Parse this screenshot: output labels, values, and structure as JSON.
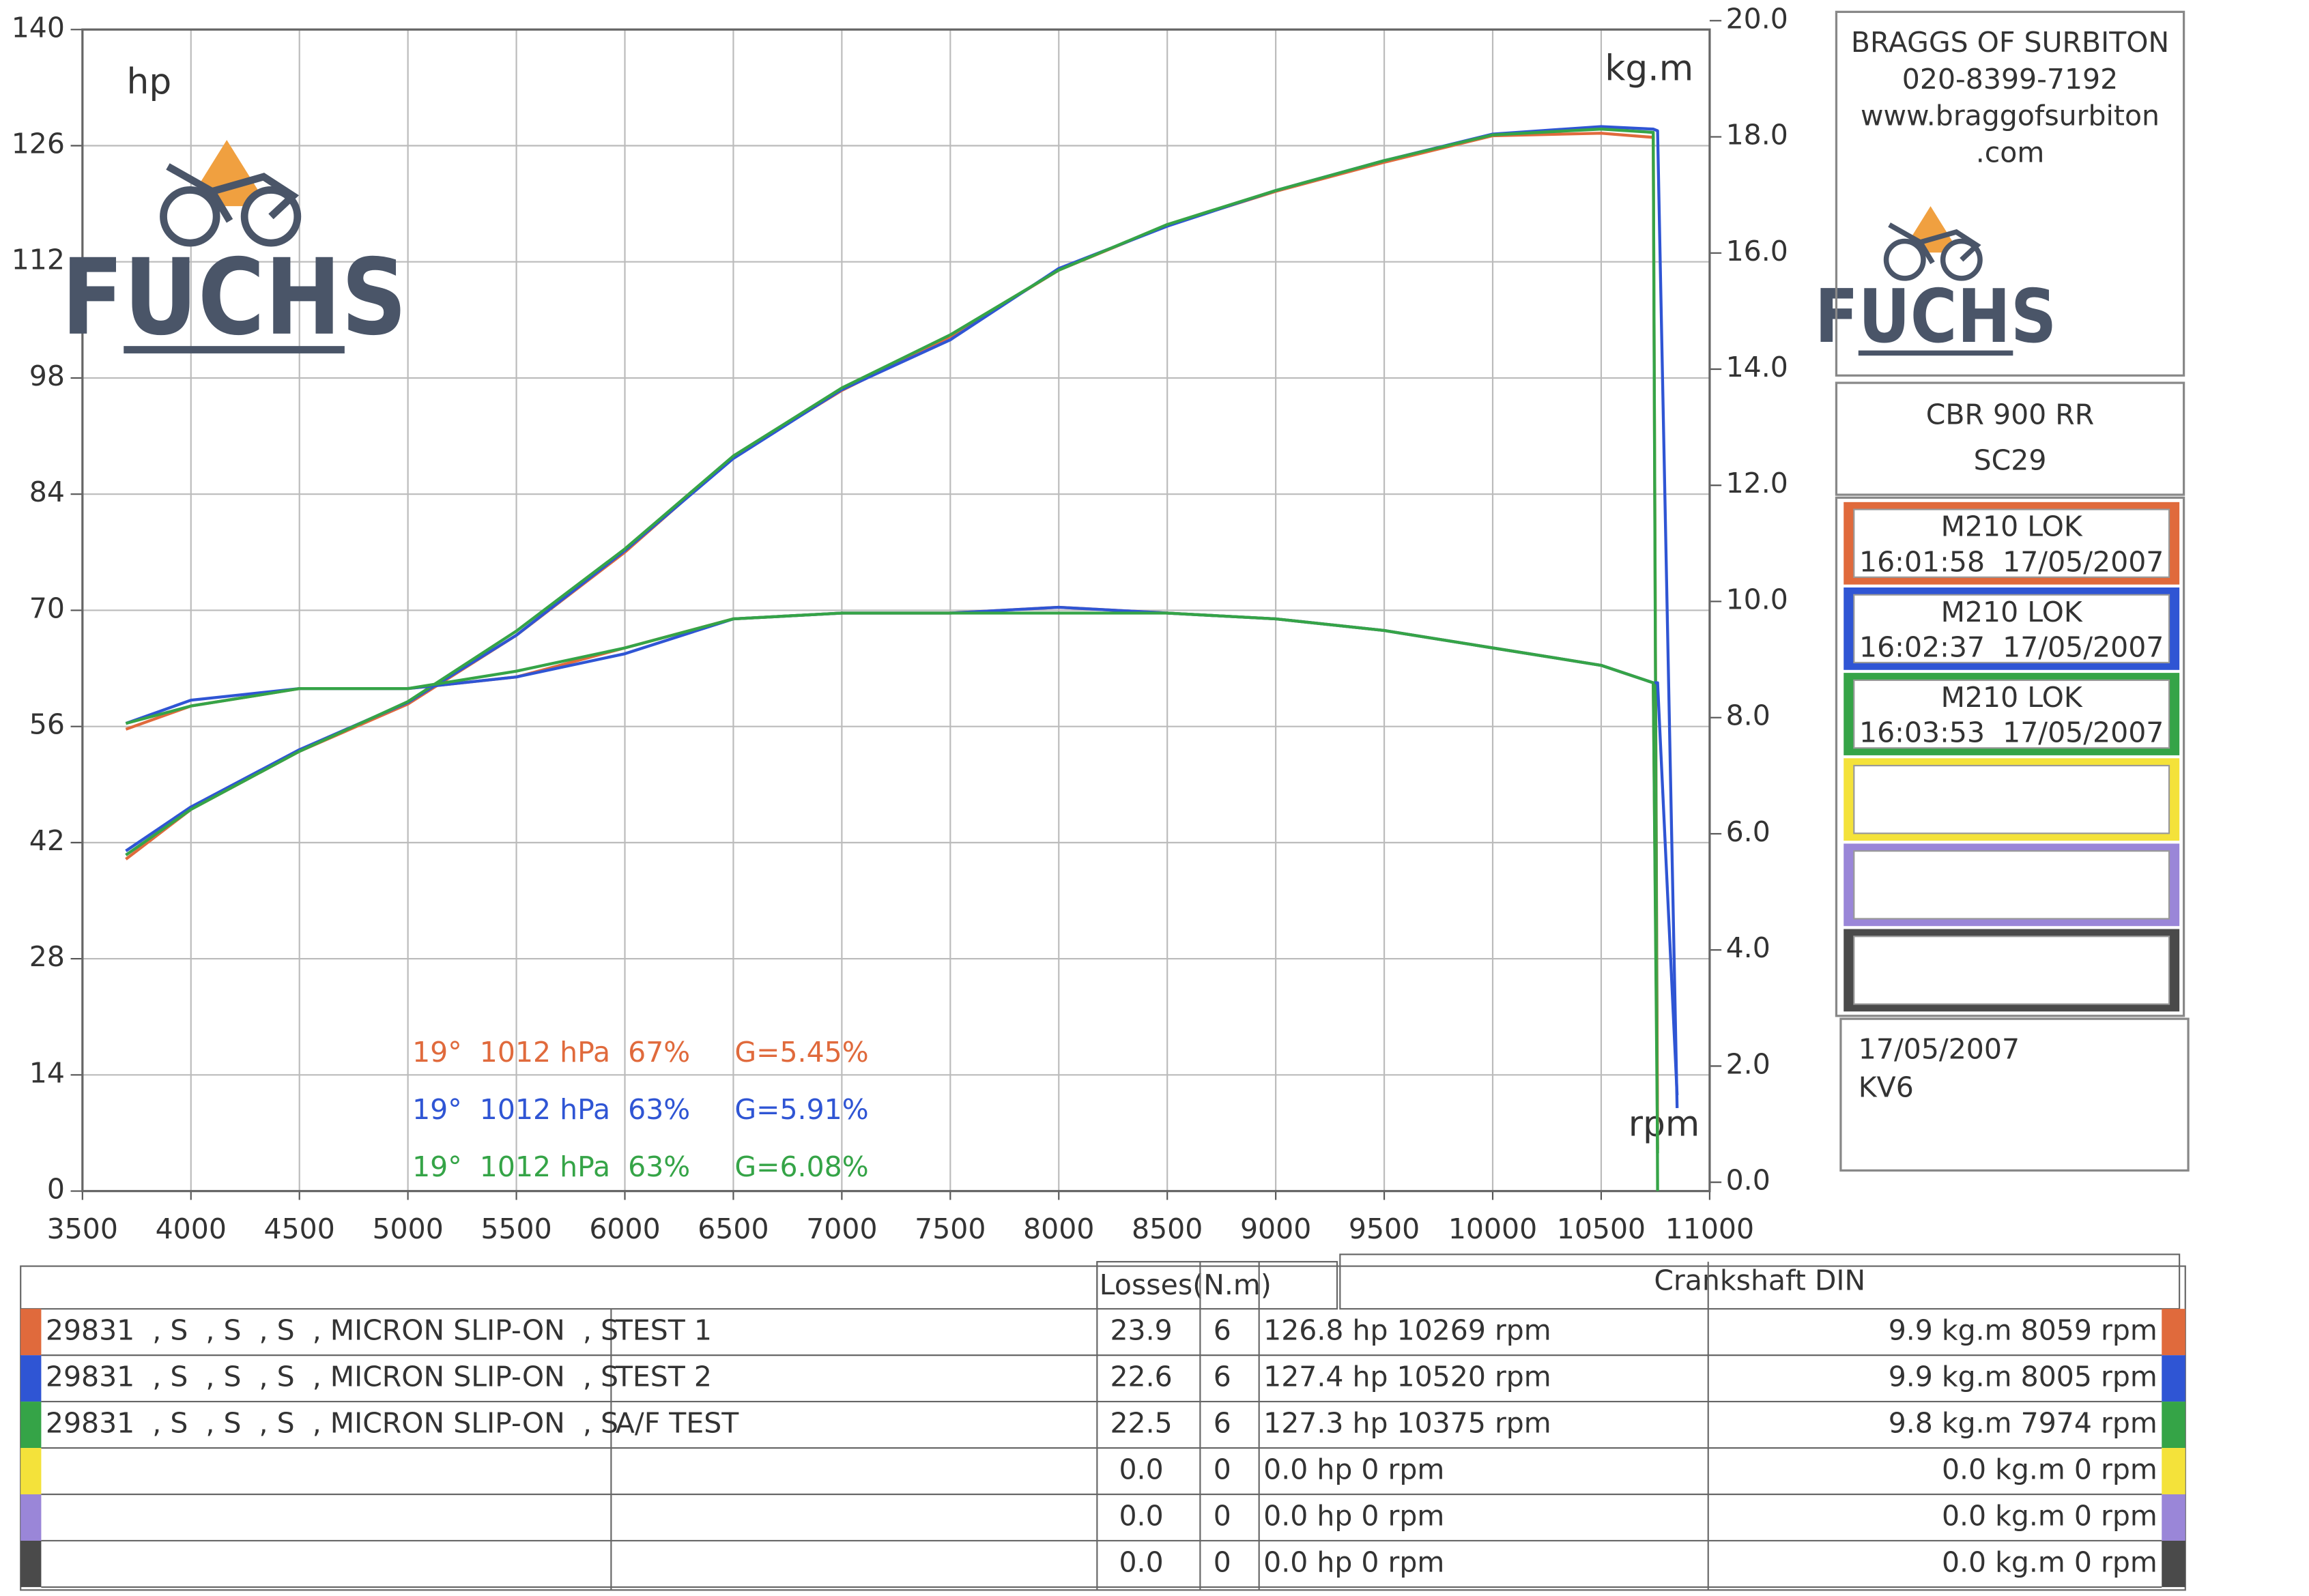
{
  "chart_data": {
    "type": "line",
    "y_label": "hp",
    "y2_label": "kg.m",
    "x_label": "rpm",
    "x": [
      3700,
      4000,
      4500,
      5000,
      5500,
      6000,
      6500,
      7000,
      7500,
      8000,
      8500,
      9000,
      9500,
      10000,
      10500,
      10740,
      10760,
      10850
    ],
    "xlim": [
      3500,
      11000
    ],
    "xticks": [
      3500,
      4000,
      4500,
      5000,
      5500,
      6000,
      6500,
      7000,
      7500,
      8000,
      8500,
      9000,
      9500,
      10000,
      10500,
      11000
    ],
    "ylim": [
      0,
      140
    ],
    "yticks": [
      0,
      14,
      28,
      42,
      56,
      70,
      84,
      98,
      112,
      126,
      140
    ],
    "y2lim": [
      0,
      20
    ],
    "y2ticks": [
      {
        "value": 0,
        "label": "0.0"
      },
      {
        "value": 2,
        "label": "2.0"
      },
      {
        "value": 4,
        "label": "4.0"
      },
      {
        "value": 6,
        "label": "6.0"
      },
      {
        "value": 8,
        "label": "8.0"
      },
      {
        "value": 10,
        "label": "10.0"
      },
      {
        "value": 12,
        "label": "12.0"
      },
      {
        "value": 14,
        "label": "14.0"
      },
      {
        "value": 16,
        "label": "16.0"
      },
      {
        "value": 18,
        "label": "18.0"
      },
      {
        "value": 20,
        "label": "20.0"
      }
    ],
    "grid": true,
    "series": [
      {
        "color": "#e06a3c",
        "values": [
          40,
          46,
          53,
          58.7,
          67,
          77,
          88.5,
          96.5,
          103,
          111,
          116.4,
          120.5,
          124,
          127.2,
          127.5,
          127,
          5,
          null
        ]
      },
      {
        "color": "#2f55d4",
        "values": [
          41,
          46.3,
          53.2,
          58.9,
          67,
          77.2,
          88.3,
          96.6,
          102.6,
          111.2,
          116.3,
          120.6,
          124.2,
          127.4,
          128.3,
          128,
          127.8,
          10
        ]
      },
      {
        "color": "#35a447",
        "values": [
          40.5,
          46,
          53,
          59,
          67.5,
          77.4,
          88.6,
          96.8,
          103.2,
          111,
          116.5,
          120.6,
          124.2,
          127.3,
          128,
          127.6,
          0,
          null
        ]
      },
      {
        "color": "#e06a3c",
        "axis": "y2",
        "values": [
          7.8,
          8.2,
          8.5,
          8.5,
          8.7,
          9.2,
          9.7,
          9.8,
          9.8,
          9.9,
          9.8,
          9.7,
          9.5,
          9.2,
          8.9,
          8.6,
          1,
          null
        ]
      },
      {
        "color": "#2f55d4",
        "axis": "y2",
        "values": [
          7.9,
          8.3,
          8.5,
          8.5,
          8.7,
          9.1,
          9.7,
          9.8,
          9.8,
          9.9,
          9.8,
          9.7,
          9.5,
          9.2,
          8.9,
          8.6,
          8.6,
          1.5
        ]
      },
      {
        "color": "#35a447",
        "axis": "y2",
        "values": [
          7.9,
          8.2,
          8.5,
          8.5,
          8.8,
          9.2,
          9.7,
          9.8,
          9.8,
          9.8,
          9.8,
          9.7,
          9.5,
          9.2,
          8.9,
          8.6,
          0.5,
          null
        ]
      }
    ],
    "annotations": [
      {
        "text": "19°  1012 hPa  67%     G=5.45%",
        "color": "#e06a3c"
      },
      {
        "text": "19°  1012 hPa  63%     G=5.91%",
        "color": "#2f55d4"
      },
      {
        "text": "19°  1012 hPa  63%     G=6.08%",
        "color": "#35a447"
      }
    ]
  },
  "logo": "FUCHS",
  "panel": {
    "header": [
      "BRAGGS OF SURBITON",
      "020-8399-7192",
      "www.braggofsurbiton",
      ".com"
    ],
    "model": [
      "CBR 900 RR",
      "SC29"
    ],
    "runs": [
      {
        "color": "#e06a3c",
        "name": "M210 LOK",
        "time": "16:01:58  17/05/2007"
      },
      {
        "color": "#2f55d4",
        "name": "M210 LOK",
        "time": "16:02:37  17/05/2007"
      },
      {
        "color": "#35a447",
        "name": "M210 LOK",
        "time": "16:03:53  17/05/2007"
      },
      {
        "color": "#f4e23a"
      },
      {
        "color": "#9a86d8"
      },
      {
        "color": "#4a4a4a"
      }
    ],
    "footer": [
      "17/05/2007",
      "KV6"
    ]
  },
  "table": {
    "losses_header": "Losses(N.m)",
    "din_header": "Crankshaft DIN",
    "rows": [
      {
        "color": "#e06a3c",
        "description": "29831  , S  , S  , S  , MICRON SLIP-ON  , S",
        "test": "TEST 1",
        "losses": "23.9",
        "n": "6",
        "power": "126.8 hp 10269 rpm",
        "torque": "9.9 kg.m 8059 rpm"
      },
      {
        "color": "#2f55d4",
        "description": "29831  , S  , S  , S  , MICRON SLIP-ON  , S",
        "test": "TEST 2",
        "losses": "22.6",
        "n": "6",
        "power": "127.4 hp 10520 rpm",
        "torque": "9.9 kg.m 8005 rpm"
      },
      {
        "color": "#35a447",
        "description": "29831  , S  , S  , S  , MICRON SLIP-ON  , S",
        "test": "A/F TEST",
        "losses": "22.5",
        "n": "6",
        "power": "127.3 hp 10375 rpm",
        "torque": "9.8 kg.m 7974 rpm"
      },
      {
        "color": "#f4e23a",
        "losses": "0.0",
        "n": "0",
        "power": "0.0 hp 0 rpm",
        "torque": "0.0 kg.m 0 rpm"
      },
      {
        "color": "#9a86d8",
        "losses": "0.0",
        "n": "0",
        "power": "0.0 hp 0 rpm",
        "torque": "0.0 kg.m 0 rpm"
      },
      {
        "color": "#4a4a4a",
        "losses": "0.0",
        "n": "0",
        "power": "0.0 hp 0 rpm",
        "torque": "0.0 kg.m 0 rpm"
      }
    ]
  }
}
